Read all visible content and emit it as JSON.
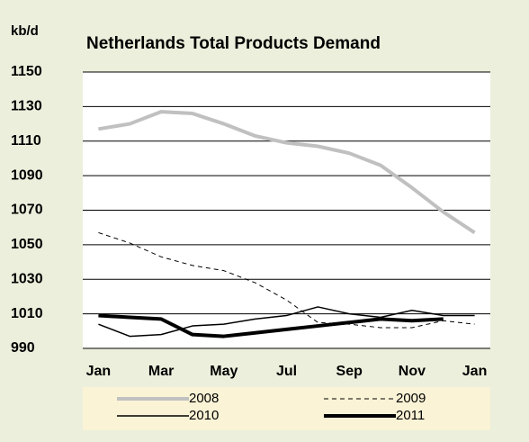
{
  "chart_data": {
    "type": "line",
    "title": "Netherlands Total Products Demand",
    "y_label": "kb/d",
    "categories": [
      "Jan",
      null,
      "Mar",
      null,
      "May",
      null,
      "Jul",
      null,
      "Sep",
      null,
      "Nov",
      null,
      "Jan"
    ],
    "series": [
      {
        "name": "2008",
        "color": "#c0c0c0",
        "width": 4,
        "dash": false,
        "values": [
          1117,
          1120,
          1127,
          1126,
          1120,
          1113,
          1109,
          1107,
          1103,
          1096,
          1083,
          1069,
          1057
        ]
      },
      {
        "name": "2009",
        "color": "#000000",
        "width": 1,
        "dash": true,
        "values": [
          1057,
          1051,
          1043,
          1038,
          1035,
          1028,
          1018,
          1005,
          1004,
          1002,
          1002,
          1006,
          1004
        ]
      },
      {
        "name": "2010",
        "color": "#000000",
        "width": 1.5,
        "dash": false,
        "values": [
          1004,
          997,
          998,
          1003,
          1004,
          1007,
          1009,
          1014,
          1010,
          1008,
          1012,
          1009,
          1009
        ]
      },
      {
        "name": "2011",
        "color": "#000000",
        "width": 4,
        "dash": false,
        "values": [
          1009,
          1008,
          1007,
          998,
          997,
          999,
          1001,
          1003,
          1005,
          1007,
          1006,
          1007,
          null
        ]
      }
    ],
    "ylim": [
      990,
      1150
    ],
    "yticks": [
      990,
      1010,
      1030,
      1050,
      1070,
      1090,
      1110,
      1130,
      1150
    ],
    "grid": true
  }
}
